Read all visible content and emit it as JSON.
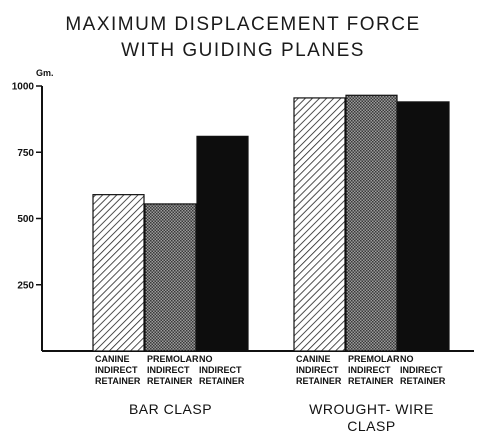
{
  "chart_data": {
    "type": "bar",
    "title_lines": [
      "MAXIMUM DISPLACEMENT FORCE",
      "WITH GUIDING PLANES"
    ],
    "ylabel": "Gm.",
    "ylim": [
      0,
      1000
    ],
    "yticks": [
      "250",
      "500",
      "750",
      "1000"
    ],
    "groups": [
      {
        "label_lines": [
          "BAR CLASP"
        ],
        "bars": [
          {
            "label_lines": [
              "CANINE",
              "INDIRECT",
              "RETAINER"
            ],
            "value": 590,
            "pattern": "hatch"
          },
          {
            "label_lines": [
              "PREMOLAR",
              "INDIRECT",
              "RETAINER"
            ],
            "value": 555,
            "pattern": "dots"
          },
          {
            "label_lines": [
              "NO",
              "INDIRECT",
              "RETAINER"
            ],
            "value": 810,
            "pattern": "solid"
          }
        ]
      },
      {
        "label_lines": [
          "WROUGHT- WIRE",
          "CLASP"
        ],
        "bars": [
          {
            "label_lines": [
              "CANINE",
              "INDIRECT",
              "RETAINER"
            ],
            "value": 955,
            "pattern": "hatch"
          },
          {
            "label_lines": [
              "PREMOLAR",
              "INDIRECT",
              "RETAINER"
            ],
            "value": 965,
            "pattern": "dots"
          },
          {
            "label_lines": [
              "NO",
              "INDIRECT",
              "RETAINER"
            ],
            "value": 940,
            "pattern": "solid"
          }
        ]
      }
    ],
    "grid": false,
    "legend": "none"
  },
  "colors": {
    "ink": "#111111",
    "bar_solid": "#0d0d0d",
    "background": "#ffffff"
  }
}
